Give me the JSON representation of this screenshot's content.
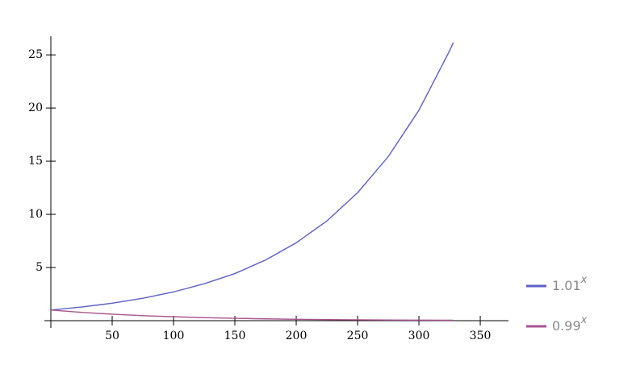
{
  "chart_data": {
    "type": "line",
    "x": [
      0,
      25,
      50,
      75,
      100,
      125,
      150,
      175,
      200,
      225,
      250,
      275,
      300,
      325,
      328
    ],
    "series": [
      {
        "name": "1.01",
        "exponent": "x",
        "color": "#5a5fc4",
        "values": [
          1,
          1.28,
          1.64,
          2.11,
          2.7,
          3.47,
          4.43,
          5.7,
          7.32,
          9.38,
          12.03,
          15.43,
          19.79,
          25.38,
          26.15
        ]
      },
      {
        "name": "0.99",
        "exponent": "x",
        "color": "#a8538f",
        "values": [
          1,
          0.78,
          0.61,
          0.47,
          0.37,
          0.28,
          0.22,
          0.17,
          0.13,
          0.1,
          0.08,
          0.06,
          0.05,
          0.04,
          0.04
        ]
      }
    ],
    "xlim": [
      0,
      373
    ],
    "ylim": [
      0,
      26.6
    ],
    "xticks": [
      50,
      100,
      150,
      200,
      250,
      300,
      350
    ],
    "yticks": [
      5,
      10,
      15,
      20,
      25
    ],
    "legend": "right"
  }
}
